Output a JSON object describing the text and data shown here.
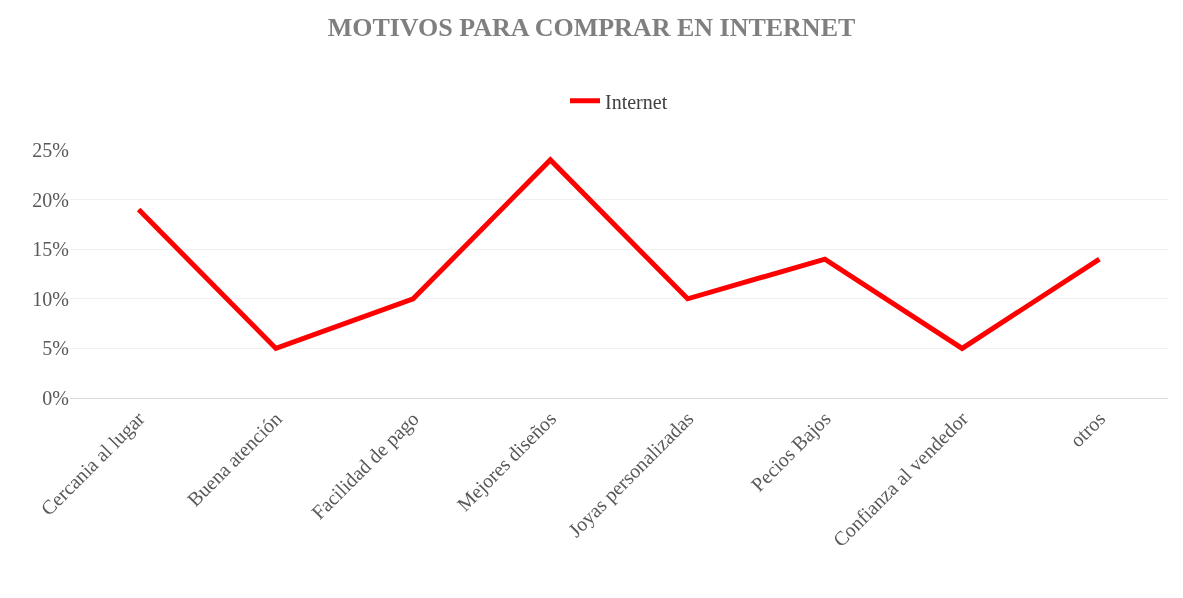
{
  "chart_data": {
    "type": "line",
    "title": "MOTIVOS PARA COMPRAR EN INTERNET",
    "categories": [
      "Cercania al lugar",
      "Buena atención",
      "Facilidad de pago",
      "Mejores diseños",
      "Joyas personalizadas",
      "Pecios Bajos",
      "Confianza al vendedor",
      "otros"
    ],
    "series": [
      {
        "name": "Internet",
        "color": "#ff0000",
        "values": [
          19,
          5,
          10,
          24,
          10,
          14,
          5,
          14
        ]
      }
    ],
    "ylim": [
      0,
      25
    ],
    "yticks": [
      {
        "value": 0,
        "label": "0%"
      },
      {
        "value": 5,
        "label": "5%"
      },
      {
        "value": 10,
        "label": "10%"
      },
      {
        "value": 15,
        "label": "15%"
      },
      {
        "value": 20,
        "label": "20%"
      },
      {
        "value": 25,
        "label": "25%"
      }
    ],
    "grid": "y",
    "legend": "top",
    "marker": "none",
    "line_style": "solid"
  }
}
